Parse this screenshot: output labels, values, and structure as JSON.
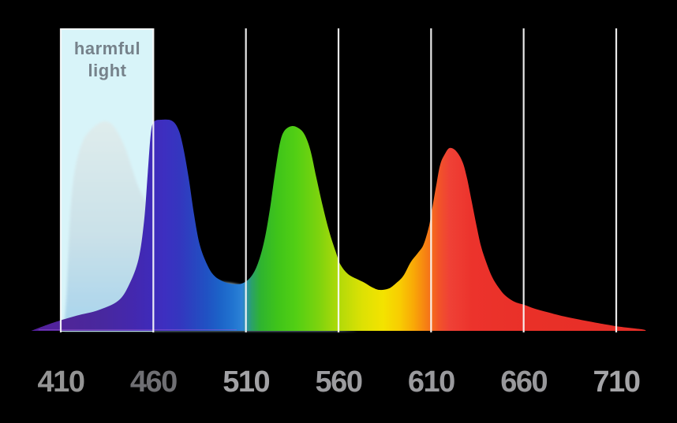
{
  "chart_data": {
    "type": "area",
    "title": "",
    "xlabel": "",
    "ylabel": "",
    "x_range": [
      394,
      726
    ],
    "y_range": [
      0,
      1
    ],
    "grid": "vertical-gridlines-at-ticks",
    "legend": "none",
    "x_ticks": [
      {
        "value": 410,
        "label": "410",
        "color": "#949494"
      },
      {
        "value": 460,
        "label": "460",
        "color": "#6f6f73"
      },
      {
        "value": 510,
        "label": "510",
        "color": "#a2a2a5"
      },
      {
        "value": 560,
        "label": "560",
        "color": "#9c9c9f"
      },
      {
        "value": 610,
        "label": "610",
        "color": "#9a9a9d"
      },
      {
        "value": 660,
        "label": "660",
        "color": "#98989b"
      },
      {
        "value": 710,
        "label": "710",
        "color": "#a4a4a7"
      }
    ],
    "annotations": [
      {
        "label": "harmful light",
        "x_from": 410,
        "x_to": 460
      }
    ],
    "series": [
      {
        "name": "spectrum",
        "points": [
          [
            394,
            0
          ],
          [
            403,
            0.03
          ],
          [
            410,
            0.05
          ],
          [
            420,
            0.075
          ],
          [
            430,
            0.097
          ],
          [
            441,
            0.142
          ],
          [
            447,
            0.22
          ],
          [
            452,
            0.34
          ],
          [
            455,
            0.52
          ],
          [
            457,
            0.75
          ],
          [
            458.6,
            0.93
          ],
          [
            460.3,
            0.99
          ],
          [
            464.5,
            1.0
          ],
          [
            470,
            0.995
          ],
          [
            473.5,
            0.955
          ],
          [
            476,
            0.875
          ],
          [
            479,
            0.73
          ],
          [
            482,
            0.55
          ],
          [
            485,
            0.41
          ],
          [
            489,
            0.315
          ],
          [
            493,
            0.26
          ],
          [
            498.5,
            0.231
          ],
          [
            503.7,
            0.221
          ],
          [
            508.4,
            0.226
          ],
          [
            512.7,
            0.256
          ],
          [
            516.5,
            0.32
          ],
          [
            520,
            0.43
          ],
          [
            523,
            0.58
          ],
          [
            526,
            0.765
          ],
          [
            528.5,
            0.895
          ],
          [
            531,
            0.95
          ],
          [
            535,
            0.97
          ],
          [
            539,
            0.957
          ],
          [
            542,
            0.924
          ],
          [
            545,
            0.85
          ],
          [
            548,
            0.728
          ],
          [
            551.5,
            0.59
          ],
          [
            555,
            0.47
          ],
          [
            558.5,
            0.375
          ],
          [
            561,
            0.315
          ],
          [
            565,
            0.27
          ],
          [
            570,
            0.245
          ],
          [
            574,
            0.228
          ],
          [
            578,
            0.207
          ],
          [
            582,
            0.194
          ],
          [
            587,
            0.2
          ],
          [
            591,
            0.225
          ],
          [
            595,
            0.26
          ],
          [
            599,
            0.325
          ],
          [
            603,
            0.37
          ],
          [
            606,
            0.41
          ],
          [
            609,
            0.5
          ],
          [
            611,
            0.6
          ],
          [
            613,
            0.7
          ],
          [
            615,
            0.79
          ],
          [
            617.5,
            0.838
          ],
          [
            620,
            0.866
          ],
          [
            623.5,
            0.852
          ],
          [
            627,
            0.8
          ],
          [
            629.5,
            0.72
          ],
          [
            632,
            0.61
          ],
          [
            634.5,
            0.5
          ],
          [
            637,
            0.4
          ],
          [
            640,
            0.32
          ],
          [
            643,
            0.255
          ],
          [
            646.5,
            0.205
          ],
          [
            650,
            0.168
          ],
          [
            655,
            0.138
          ],
          [
            660,
            0.124
          ],
          [
            666,
            0.105
          ],
          [
            673,
            0.088
          ],
          [
            682,
            0.068
          ],
          [
            695,
            0.045
          ],
          [
            710,
            0.022
          ],
          [
            724,
            0.007
          ],
          [
            726,
            0
          ]
        ]
      },
      {
        "name": "harmful-light-overlay",
        "points": [
          [
            411.5,
            0
          ],
          [
            413,
            0.15
          ],
          [
            414,
            0.34
          ],
          [
            415.5,
            0.6
          ],
          [
            418,
            0.78
          ],
          [
            422,
            0.9
          ],
          [
            426,
            0.95
          ],
          [
            431,
            0.985
          ],
          [
            434.5,
            0.992
          ],
          [
            438,
            0.975
          ],
          [
            442,
            0.92
          ],
          [
            445.5,
            0.85
          ],
          [
            448.5,
            0.77
          ],
          [
            452,
            0.68
          ],
          [
            457,
            0.585
          ],
          [
            462.5,
            0.41
          ],
          [
            467,
            0.32
          ],
          [
            471,
            0.28
          ],
          [
            476,
            0.255
          ],
          [
            481.5,
            0.245
          ],
          [
            492,
            0.235
          ],
          [
            505,
            0.22
          ],
          [
            511.5,
            0.195
          ],
          [
            517,
            0.15
          ],
          [
            522,
            0.11
          ],
          [
            533,
            0.055
          ],
          [
            545,
            0.022
          ],
          [
            560,
            0.007
          ],
          [
            571,
            0
          ]
        ]
      }
    ]
  },
  "harmful_region": {
    "label": "harmful light",
    "from_nm": 410,
    "to_nm": 460,
    "fill": "#d8f4f9",
    "border": "#ffffff",
    "label_color": "#76828b"
  },
  "colors": {
    "background": "#000000",
    "gridline": "#fafafa",
    "baseline_rim": "#9b59d0",
    "overlay_gradient": [
      "#dfecec",
      "#c9e0e8",
      "#a5d2ec"
    ],
    "spectrum_gradient": [
      {
        "wl": 394,
        "color": "#551f9e"
      },
      {
        "wl": 416,
        "color": "#4e2699"
      },
      {
        "wl": 433,
        "color": "#48289f"
      },
      {
        "wl": 448,
        "color": "#4428ad"
      },
      {
        "wl": 458,
        "color": "#3f2ab8"
      },
      {
        "wl": 466,
        "color": "#3d2fc0"
      },
      {
        "wl": 474,
        "color": "#3436bf"
      },
      {
        "wl": 481,
        "color": "#2a43c0"
      },
      {
        "wl": 489,
        "color": "#2052c3"
      },
      {
        "wl": 496,
        "color": "#1c63c8"
      },
      {
        "wl": 503,
        "color": "#2174d0"
      },
      {
        "wl": 508,
        "color": "#2c83d6"
      },
      {
        "wl": 513,
        "color": "#2ba06b"
      },
      {
        "wl": 518,
        "color": "#2fb42f"
      },
      {
        "wl": 527,
        "color": "#3fc41a"
      },
      {
        "wl": 537,
        "color": "#52cf14"
      },
      {
        "wl": 549,
        "color": "#7cd30e"
      },
      {
        "wl": 561,
        "color": "#b4da09"
      },
      {
        "wl": 573,
        "color": "#dde104"
      },
      {
        "wl": 584,
        "color": "#f3e300"
      },
      {
        "wl": 593,
        "color": "#f8cd02"
      },
      {
        "wl": 601,
        "color": "#f9a607"
      },
      {
        "wl": 608,
        "color": "#f67b15"
      },
      {
        "wl": 614,
        "color": "#f25428"
      },
      {
        "wl": 620,
        "color": "#ef4136"
      },
      {
        "wl": 632,
        "color": "#ec332c"
      },
      {
        "wl": 664,
        "color": "#e93028"
      },
      {
        "wl": 726,
        "color": "#e62e27"
      }
    ]
  }
}
